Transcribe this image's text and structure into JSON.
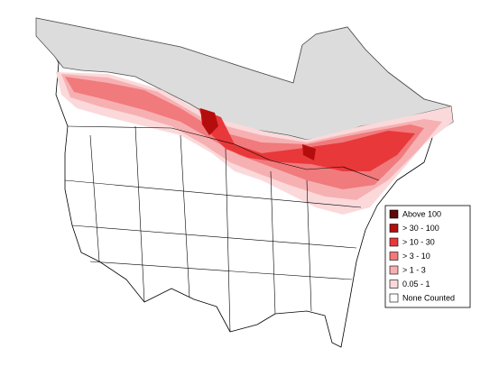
{
  "legend": {
    "items": [
      {
        "label": "Above 100",
        "color": "#5c0a0a"
      },
      {
        "label": "> 30 - 100",
        "color": "#b50d0d"
      },
      {
        "label": "> 10 - 30",
        "color": "#e8383a"
      },
      {
        "label": "> 3 - 10",
        "color": "#f07a7c"
      },
      {
        "label": "> 1 - 3",
        "color": "#f7b0b2"
      },
      {
        "label": "0.05 - 1",
        "color": "#fbd9da"
      },
      {
        "label": "None Counted",
        "color": "#ffffff"
      }
    ]
  }
}
